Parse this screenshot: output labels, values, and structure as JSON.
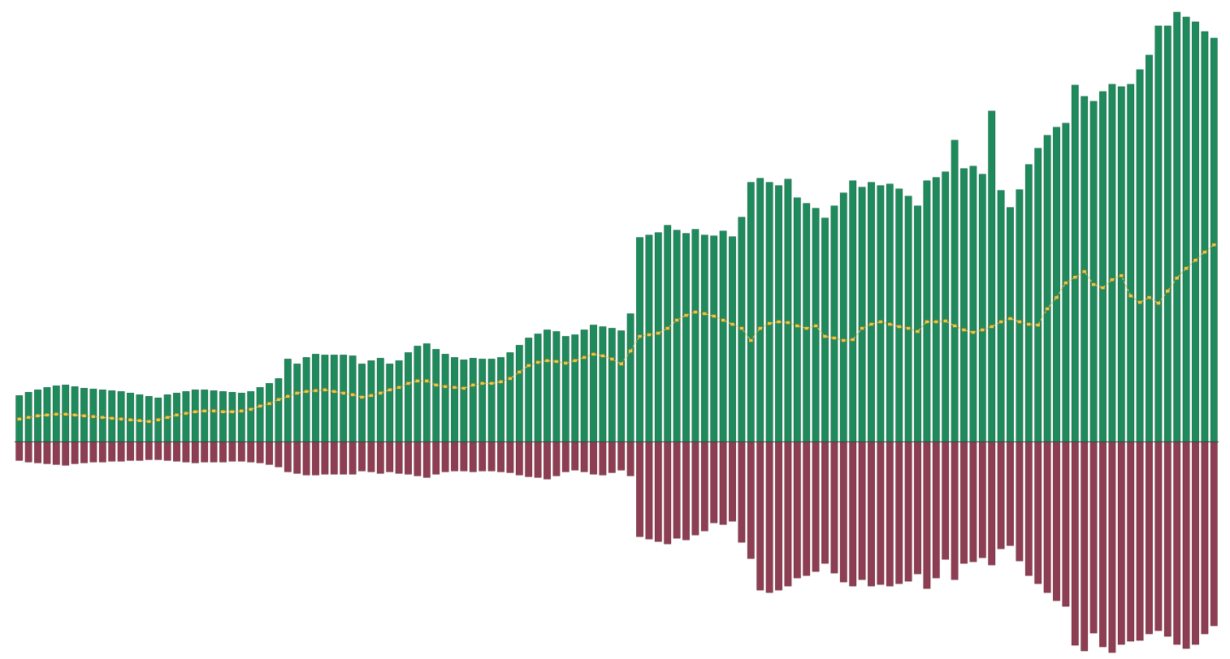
{
  "chart_data": {
    "type": "bar",
    "title": "",
    "xlabel": "",
    "ylabel": "",
    "ylim": [
      -260,
      535
    ],
    "grid": false,
    "legend": "none",
    "colors": {
      "positive": "#1f8a5c",
      "negative": "#8e3e52",
      "line": "#e8c84a",
      "background": "#ffffff"
    },
    "series": [
      {
        "values": [
          57,
          61,
          64,
          67,
          69,
          70,
          68,
          66,
          65,
          64,
          63,
          62,
          60,
          58,
          56,
          54,
          58,
          60,
          62,
          64,
          64,
          63,
          62,
          61,
          60,
          62,
          67,
          72,
          78,
          102,
          96,
          104,
          108,
          107,
          107,
          107,
          106,
          96,
          100,
          103,
          96,
          100,
          110,
          118,
          121,
          114,
          108,
          104,
          101,
          103,
          102,
          102,
          104,
          110,
          119,
          128,
          133,
          138,
          136,
          130,
          132,
          138,
          144,
          142,
          140,
          137,
          158,
          252,
          255,
          258,
          267,
          261,
          257,
          262,
          255,
          254,
          260,
          253,
          277,
          320,
          325,
          320,
          316,
          324,
          301,
          294,
          288,
          276,
          291,
          307,
          322,
          314,
          320,
          316,
          318,
          312,
          303,
          291,
          322,
          326,
          333,
          372,
          337,
          340,
          330,
          408,
          310,
          289,
          311,
          342,
          362,
          378,
          388,
          393,
          440,
          426,
          420,
          432,
          441,
          438,
          441,
          459,
          477,
          513,
          513,
          530,
          524,
          518,
          506,
          498
        ]
      },
      {
        "values": [
          -23,
          -25,
          -26,
          -27,
          -28,
          -29,
          -27,
          -26,
          -25,
          -25,
          -24,
          -24,
          -23,
          -23,
          -22,
          -22,
          -23,
          -24,
          -25,
          -26,
          -25,
          -25,
          -25,
          -24,
          -24,
          -25,
          -26,
          -28,
          -31,
          -37,
          -39,
          -41,
          -41,
          -40,
          -40,
          -40,
          -40,
          -36,
          -37,
          -39,
          -37,
          -39,
          -40,
          -42,
          -44,
          -40,
          -37,
          -36,
          -36,
          -37,
          -36,
          -36,
          -37,
          -38,
          -41,
          -43,
          -44,
          -46,
          -42,
          -37,
          -35,
          -37,
          -40,
          -41,
          -38,
          -35,
          -42,
          -117,
          -120,
          -123,
          -126,
          -119,
          -121,
          -115,
          -110,
          -100,
          -102,
          -98,
          -124,
          -144,
          -183,
          -186,
          -183,
          -178,
          -168,
          -165,
          -160,
          -150,
          -162,
          -173,
          -178,
          -170,
          -178,
          -176,
          -178,
          -175,
          -172,
          -163,
          -181,
          -168,
          -145,
          -170,
          -150,
          -148,
          -143,
          -152,
          -132,
          -128,
          -147,
          -165,
          -175,
          -186,
          -196,
          -203,
          -251,
          -258,
          -236,
          -253,
          -260,
          -250,
          -246,
          -245,
          -237,
          -233,
          -240,
          -250,
          -255,
          -250,
          -237,
          -227
        ]
      },
      {
        "values": [
          28,
          30,
          32,
          33,
          34,
          34,
          33,
          32,
          31,
          30,
          29,
          28,
          27,
          26,
          25,
          27,
          30,
          33,
          35,
          37,
          38,
          38,
          37,
          37,
          38,
          40,
          44,
          47,
          52,
          56,
          60,
          62,
          63,
          64,
          62,
          60,
          58,
          55,
          57,
          60,
          64,
          67,
          72,
          75,
          75,
          70,
          68,
          67,
          66,
          70,
          72,
          72,
          74,
          78,
          86,
          94,
          98,
          100,
          99,
          97,
          100,
          104,
          108,
          106,
          102,
          96,
          112,
          130,
          132,
          134,
          140,
          150,
          156,
          160,
          158,
          155,
          150,
          145,
          140,
          125,
          140,
          146,
          148,
          147,
          143,
          140,
          143,
          130,
          128,
          125,
          126,
          140,
          145,
          148,
          145,
          142,
          140,
          136,
          148,
          148,
          149,
          143,
          138,
          135,
          138,
          142,
          148,
          152,
          148,
          145,
          144,
          164,
          178,
          196,
          203,
          210,
          194,
          190,
          200,
          205,
          180,
          172,
          178,
          171,
          186,
          202,
          214,
          224,
          234,
          243
        ]
      }
    ]
  }
}
